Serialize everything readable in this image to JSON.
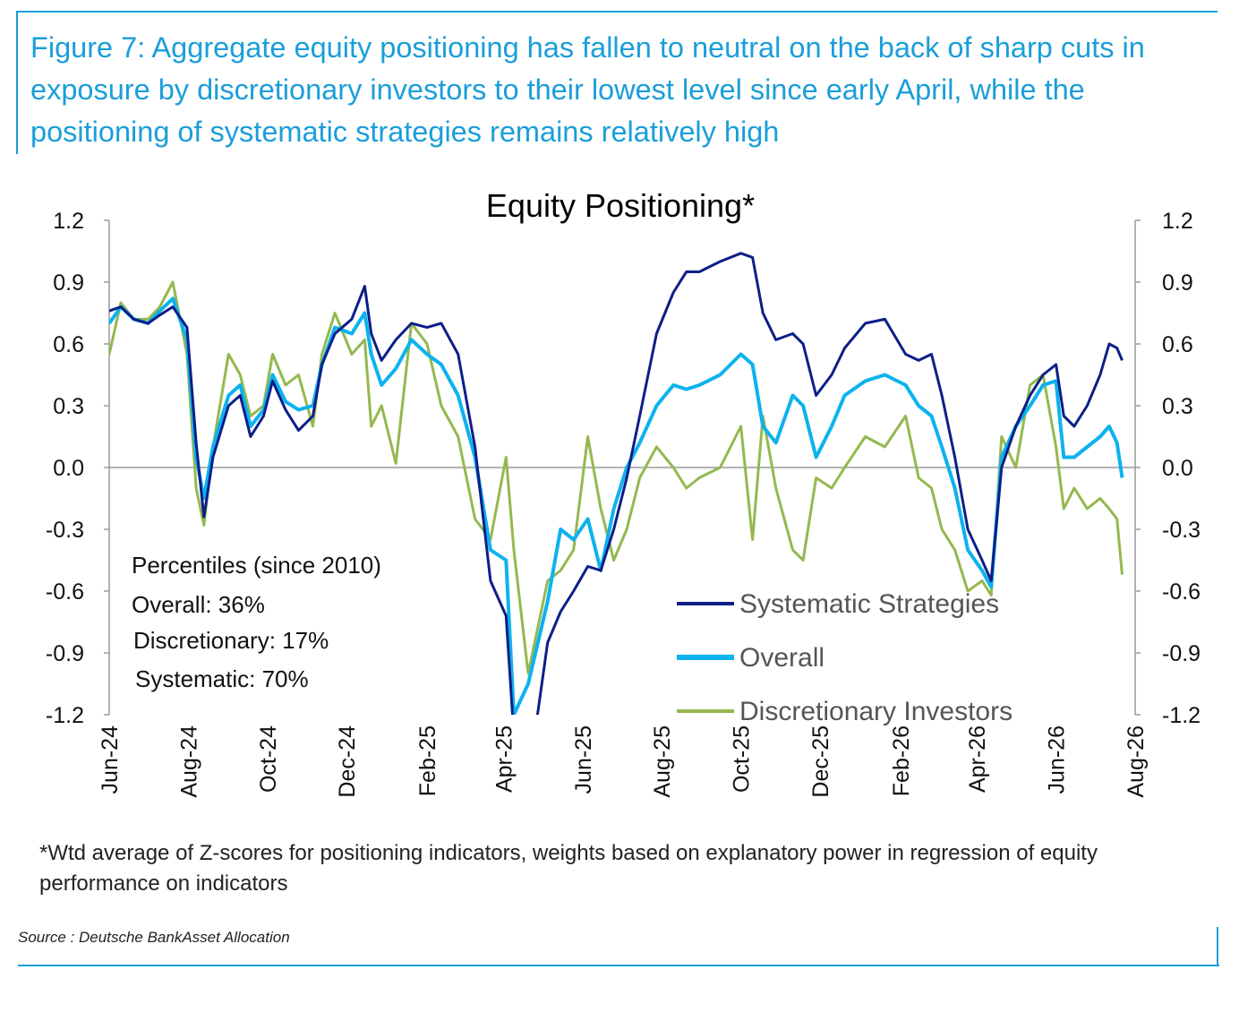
{
  "figure_heading": "Figure 7: Aggregate equity positioning has fallen to neutral on the back of sharp cuts in exposure by discretionary investors to their lowest level since early April, while the positioning of systematic strategies remains relatively high",
  "footnote": "*Wtd average of Z-scores for positioning indicators, weights based on explanatory power in regression of equity performance on indicators",
  "source": "Source : Deutsche BankAsset Allocation",
  "percentiles": {
    "title": "Percentiles (since 2010)",
    "overall": "Overall: 36%",
    "discretionary": "Discretionary: 17%",
    "systematic": "Systematic: 70%"
  },
  "colors": {
    "heading": "#1a9ed9",
    "systematic": "#0c1f87",
    "overall": "#0db2ef",
    "discretionary": "#94b84f",
    "axis": "#9a9a9a"
  },
  "chart_data": {
    "type": "line",
    "title": "Equity Positioning*",
    "xlabel": "",
    "ylabel": "",
    "ylim": [
      -1.2,
      1.2
    ],
    "yticks": [
      "1.2",
      "0.9",
      "0.6",
      "0.3",
      "0.0",
      "-0.3",
      "-0.6",
      "-0.9",
      "-1.2"
    ],
    "secondary_yticks": [
      "1.2",
      "0.9",
      "0.6",
      "0.3",
      "0.0",
      "-0.3",
      "-0.6",
      "-0.9",
      "-1.2"
    ],
    "xticks": [
      "Jun-24",
      "Aug-24",
      "Oct-24",
      "Dec-24",
      "Feb-25",
      "Apr-25",
      "Jun-25",
      "Aug-25",
      "Oct-25",
      "Dec-25",
      "Feb-26",
      "Apr-26",
      "Jun-26",
      "Aug-26"
    ],
    "xlim": [
      "2024-06-01",
      "2026-08-01"
    ],
    "grid": false,
    "legend_position": "bottom-right",
    "series": [
      {
        "name": "Systematic Strategies",
        "color": "#0c1f87",
        "points": [
          [
            "2024-06-01",
            0.76
          ],
          [
            "2024-06-10",
            0.78
          ],
          [
            "2024-06-20",
            0.72
          ],
          [
            "2024-07-01",
            0.7
          ],
          [
            "2024-07-10",
            0.74
          ],
          [
            "2024-07-20",
            0.78
          ],
          [
            "2024-07-31",
            0.68
          ],
          [
            "2024-08-07",
            0.12
          ],
          [
            "2024-08-13",
            -0.24
          ],
          [
            "2024-08-20",
            0.05
          ],
          [
            "2024-09-01",
            0.3
          ],
          [
            "2024-09-10",
            0.35
          ],
          [
            "2024-09-18",
            0.15
          ],
          [
            "2024-09-28",
            0.25
          ],
          [
            "2024-10-05",
            0.42
          ],
          [
            "2024-10-15",
            0.28
          ],
          [
            "2024-10-25",
            0.18
          ],
          [
            "2024-11-05",
            0.25
          ],
          [
            "2024-11-12",
            0.5
          ],
          [
            "2024-11-22",
            0.65
          ],
          [
            "2024-12-05",
            0.72
          ],
          [
            "2024-12-15",
            0.88
          ],
          [
            "2024-12-20",
            0.65
          ],
          [
            "2024-12-28",
            0.52
          ],
          [
            "2025-01-08",
            0.62
          ],
          [
            "2025-01-20",
            0.7
          ],
          [
            "2025-02-01",
            0.68
          ],
          [
            "2025-02-12",
            0.7
          ],
          [
            "2025-02-25",
            0.55
          ],
          [
            "2025-03-10",
            0.1
          ],
          [
            "2025-03-22",
            -0.55
          ],
          [
            "2025-04-03",
            -0.72
          ],
          [
            "2025-04-09",
            -1.3
          ],
          [
            "2025-04-25",
            -1.3
          ],
          [
            "2025-05-05",
            -0.85
          ],
          [
            "2025-05-15",
            -0.7
          ],
          [
            "2025-05-25",
            -0.6
          ],
          [
            "2025-06-05",
            -0.48
          ],
          [
            "2025-06-15",
            -0.5
          ],
          [
            "2025-06-25",
            -0.3
          ],
          [
            "2025-07-05",
            -0.05
          ],
          [
            "2025-07-15",
            0.25
          ],
          [
            "2025-07-28",
            0.65
          ],
          [
            "2025-08-10",
            0.85
          ],
          [
            "2025-08-20",
            0.95
          ],
          [
            "2025-08-30",
            0.95
          ],
          [
            "2025-09-15",
            1.0
          ],
          [
            "2025-10-01",
            1.04
          ],
          [
            "2025-10-10",
            1.02
          ],
          [
            "2025-10-18",
            0.75
          ],
          [
            "2025-10-28",
            0.62
          ],
          [
            "2025-11-10",
            0.65
          ],
          [
            "2025-11-18",
            0.6
          ],
          [
            "2025-11-28",
            0.35
          ],
          [
            "2025-12-10",
            0.45
          ],
          [
            "2025-12-20",
            0.58
          ],
          [
            "2026-01-05",
            0.7
          ],
          [
            "2026-01-20",
            0.72
          ],
          [
            "2026-02-05",
            0.55
          ],
          [
            "2026-02-15",
            0.52
          ],
          [
            "2026-02-25",
            0.55
          ],
          [
            "2026-03-05",
            0.35
          ],
          [
            "2026-03-15",
            0.05
          ],
          [
            "2026-03-25",
            -0.3
          ],
          [
            "2026-04-05",
            -0.45
          ],
          [
            "2026-04-12",
            -0.55
          ],
          [
            "2026-04-20",
            0.0
          ],
          [
            "2026-05-01",
            0.2
          ],
          [
            "2026-05-12",
            0.35
          ],
          [
            "2026-05-22",
            0.45
          ],
          [
            "2026-06-01",
            0.5
          ],
          [
            "2026-06-07",
            0.25
          ],
          [
            "2026-06-15",
            0.2
          ],
          [
            "2026-06-25",
            0.3
          ],
          [
            "2026-07-05",
            0.45
          ],
          [
            "2026-07-12",
            0.6
          ],
          [
            "2026-07-18",
            0.58
          ],
          [
            "2026-07-22",
            0.52
          ]
        ]
      },
      {
        "name": "Overall",
        "color": "#0db2ef",
        "points": [
          [
            "2024-06-01",
            0.7
          ],
          [
            "2024-06-10",
            0.78
          ],
          [
            "2024-06-20",
            0.72
          ],
          [
            "2024-07-01",
            0.7
          ],
          [
            "2024-07-10",
            0.76
          ],
          [
            "2024-07-20",
            0.82
          ],
          [
            "2024-07-31",
            0.62
          ],
          [
            "2024-08-07",
            0.05
          ],
          [
            "2024-08-13",
            -0.15
          ],
          [
            "2024-08-20",
            0.1
          ],
          [
            "2024-09-01",
            0.35
          ],
          [
            "2024-09-10",
            0.4
          ],
          [
            "2024-09-18",
            0.2
          ],
          [
            "2024-09-28",
            0.28
          ],
          [
            "2024-10-05",
            0.45
          ],
          [
            "2024-10-15",
            0.32
          ],
          [
            "2024-10-25",
            0.28
          ],
          [
            "2024-11-05",
            0.3
          ],
          [
            "2024-11-12",
            0.5
          ],
          [
            "2024-11-22",
            0.68
          ],
          [
            "2024-12-05",
            0.65
          ],
          [
            "2024-12-15",
            0.75
          ],
          [
            "2024-12-20",
            0.55
          ],
          [
            "2024-12-28",
            0.4
          ],
          [
            "2025-01-08",
            0.48
          ],
          [
            "2025-01-20",
            0.62
          ],
          [
            "2025-02-01",
            0.55
          ],
          [
            "2025-02-12",
            0.5
          ],
          [
            "2025-02-25",
            0.35
          ],
          [
            "2025-03-10",
            0.05
          ],
          [
            "2025-03-22",
            -0.4
          ],
          [
            "2025-04-03",
            -0.45
          ],
          [
            "2025-04-09",
            -1.2
          ],
          [
            "2025-04-20",
            -1.05
          ],
          [
            "2025-05-05",
            -0.65
          ],
          [
            "2025-05-15",
            -0.3
          ],
          [
            "2025-05-25",
            -0.35
          ],
          [
            "2025-06-05",
            -0.25
          ],
          [
            "2025-06-15",
            -0.5
          ],
          [
            "2025-06-25",
            -0.2
          ],
          [
            "2025-07-05",
            0.0
          ],
          [
            "2025-07-15",
            0.12
          ],
          [
            "2025-07-28",
            0.3
          ],
          [
            "2025-08-10",
            0.4
          ],
          [
            "2025-08-20",
            0.38
          ],
          [
            "2025-08-30",
            0.4
          ],
          [
            "2025-09-15",
            0.45
          ],
          [
            "2025-10-01",
            0.55
          ],
          [
            "2025-10-10",
            0.5
          ],
          [
            "2025-10-18",
            0.2
          ],
          [
            "2025-10-28",
            0.12
          ],
          [
            "2025-11-10",
            0.35
          ],
          [
            "2025-11-18",
            0.3
          ],
          [
            "2025-11-28",
            0.05
          ],
          [
            "2025-12-10",
            0.2
          ],
          [
            "2025-12-20",
            0.35
          ],
          [
            "2026-01-05",
            0.42
          ],
          [
            "2026-01-20",
            0.45
          ],
          [
            "2026-02-05",
            0.4
          ],
          [
            "2026-02-15",
            0.3
          ],
          [
            "2026-02-25",
            0.25
          ],
          [
            "2026-03-05",
            0.1
          ],
          [
            "2026-03-15",
            -0.1
          ],
          [
            "2026-03-25",
            -0.4
          ],
          [
            "2026-04-05",
            -0.5
          ],
          [
            "2026-04-12",
            -0.58
          ],
          [
            "2026-04-20",
            0.05
          ],
          [
            "2026-05-01",
            0.2
          ],
          [
            "2026-05-12",
            0.3
          ],
          [
            "2026-05-22",
            0.4
          ],
          [
            "2026-06-01",
            0.42
          ],
          [
            "2026-06-07",
            0.05
          ],
          [
            "2026-06-15",
            0.05
          ],
          [
            "2026-06-25",
            0.1
          ],
          [
            "2026-07-05",
            0.15
          ],
          [
            "2026-07-12",
            0.2
          ],
          [
            "2026-07-18",
            0.12
          ],
          [
            "2026-07-22",
            -0.05
          ]
        ]
      },
      {
        "name": "Discretionary Investors",
        "color": "#94b84f",
        "points": [
          [
            "2024-06-01",
            0.55
          ],
          [
            "2024-06-10",
            0.8
          ],
          [
            "2024-06-20",
            0.72
          ],
          [
            "2024-07-01",
            0.72
          ],
          [
            "2024-07-10",
            0.78
          ],
          [
            "2024-07-20",
            0.9
          ],
          [
            "2024-07-31",
            0.55
          ],
          [
            "2024-08-07",
            -0.1
          ],
          [
            "2024-08-13",
            -0.28
          ],
          [
            "2024-08-20",
            0.1
          ],
          [
            "2024-09-01",
            0.55
          ],
          [
            "2024-09-10",
            0.45
          ],
          [
            "2024-09-18",
            0.25
          ],
          [
            "2024-09-28",
            0.3
          ],
          [
            "2024-10-05",
            0.55
          ],
          [
            "2024-10-15",
            0.4
          ],
          [
            "2024-10-25",
            0.45
          ],
          [
            "2024-11-05",
            0.2
          ],
          [
            "2024-11-12",
            0.55
          ],
          [
            "2024-11-22",
            0.75
          ],
          [
            "2024-12-05",
            0.55
          ],
          [
            "2024-12-15",
            0.62
          ],
          [
            "2024-12-20",
            0.2
          ],
          [
            "2024-12-28",
            0.3
          ],
          [
            "2025-01-08",
            0.02
          ],
          [
            "2025-01-20",
            0.7
          ],
          [
            "2025-02-01",
            0.6
          ],
          [
            "2025-02-12",
            0.3
          ],
          [
            "2025-02-25",
            0.15
          ],
          [
            "2025-03-10",
            -0.25
          ],
          [
            "2025-03-22",
            -0.35
          ],
          [
            "2025-04-03",
            0.05
          ],
          [
            "2025-04-09",
            -0.4
          ],
          [
            "2025-04-20",
            -1.0
          ],
          [
            "2025-05-05",
            -0.55
          ],
          [
            "2025-05-15",
            -0.5
          ],
          [
            "2025-05-25",
            -0.4
          ],
          [
            "2025-06-05",
            0.15
          ],
          [
            "2025-06-15",
            -0.2
          ],
          [
            "2025-06-25",
            -0.45
          ],
          [
            "2025-07-05",
            -0.3
          ],
          [
            "2025-07-15",
            -0.05
          ],
          [
            "2025-07-28",
            0.1
          ],
          [
            "2025-08-10",
            0.0
          ],
          [
            "2025-08-20",
            -0.1
          ],
          [
            "2025-08-30",
            -0.05
          ],
          [
            "2025-09-15",
            0.0
          ],
          [
            "2025-10-01",
            0.2
          ],
          [
            "2025-10-10",
            -0.35
          ],
          [
            "2025-10-18",
            0.25
          ],
          [
            "2025-10-28",
            -0.1
          ],
          [
            "2025-11-10",
            -0.4
          ],
          [
            "2025-11-18",
            -0.45
          ],
          [
            "2025-11-28",
            -0.05
          ],
          [
            "2025-12-10",
            -0.1
          ],
          [
            "2025-12-20",
            0.0
          ],
          [
            "2026-01-05",
            0.15
          ],
          [
            "2026-01-20",
            0.1
          ],
          [
            "2026-02-05",
            0.25
          ],
          [
            "2026-02-15",
            -0.05
          ],
          [
            "2026-02-25",
            -0.1
          ],
          [
            "2026-03-05",
            -0.3
          ],
          [
            "2026-03-15",
            -0.4
          ],
          [
            "2026-03-25",
            -0.6
          ],
          [
            "2026-04-05",
            -0.55
          ],
          [
            "2026-04-12",
            -0.62
          ],
          [
            "2026-04-20",
            0.15
          ],
          [
            "2026-05-01",
            0.0
          ],
          [
            "2026-05-12",
            0.4
          ],
          [
            "2026-05-22",
            0.45
          ],
          [
            "2026-06-01",
            0.1
          ],
          [
            "2026-06-07",
            -0.2
          ],
          [
            "2026-06-15",
            -0.1
          ],
          [
            "2026-06-25",
            -0.2
          ],
          [
            "2026-07-05",
            -0.15
          ],
          [
            "2026-07-12",
            -0.2
          ],
          [
            "2026-07-18",
            -0.25
          ],
          [
            "2026-07-22",
            -0.52
          ]
        ]
      }
    ]
  }
}
